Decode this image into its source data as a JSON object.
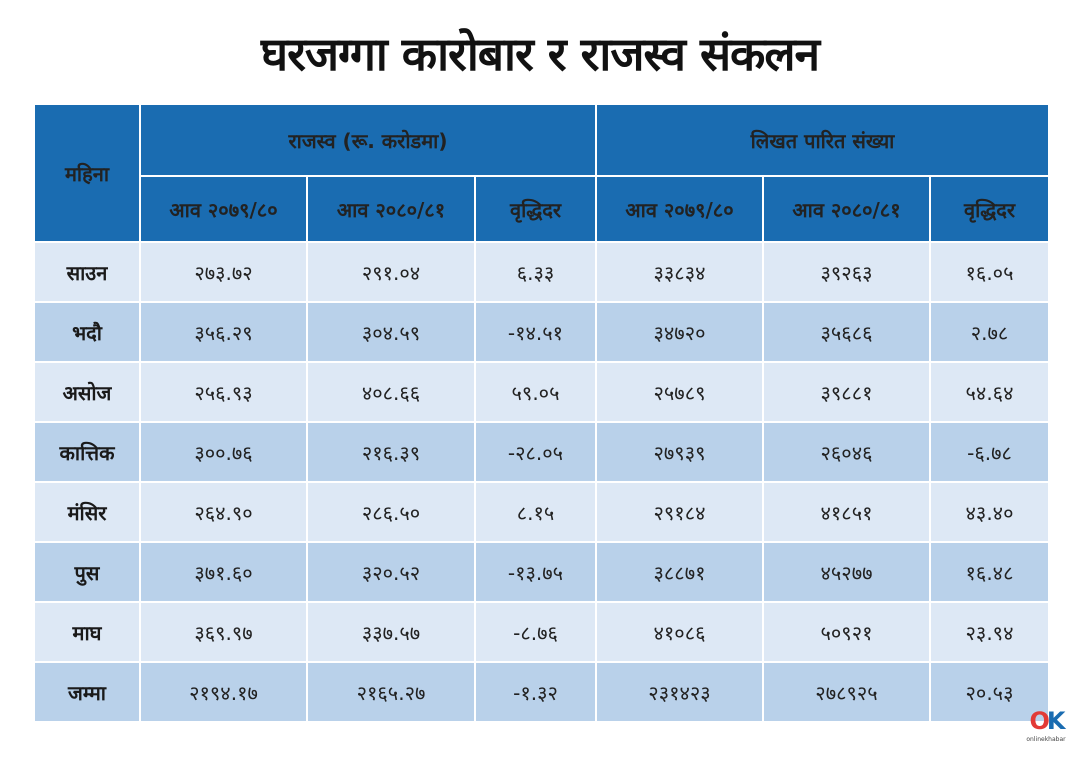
{
  "title": "घरजग्गा कारोबार र राजस्व संकलन",
  "header": {
    "month": "महिना",
    "revenue_group": "राजस्व (रू. करोडमा)",
    "count_group": "लिखत पारित संख्या",
    "col_prev": "आव २०७९/८०",
    "col_curr": "आव २०८०/८१",
    "col_growth": "वृद्धिदर"
  },
  "rows": [
    {
      "month": "साउन",
      "rev_prev": "२७३.७२",
      "rev_curr": "२९१.०४",
      "rev_growth": "६.३३",
      "cnt_prev": "३३८३४",
      "cnt_curr": "३९२६३",
      "cnt_growth": "१६.०५"
    },
    {
      "month": "भदौ",
      "rev_prev": "३५६.२९",
      "rev_curr": "३०४.५९",
      "rev_growth": "-१४.५१",
      "cnt_prev": "३४७२०",
      "cnt_curr": "३५६८६",
      "cnt_growth": "२.७८"
    },
    {
      "month": "असोज",
      "rev_prev": "२५६.९३",
      "rev_curr": "४०८.६६",
      "rev_growth": "५९.०५",
      "cnt_prev": "२५७८९",
      "cnt_curr": "३९८८१",
      "cnt_growth": "५४.६४"
    },
    {
      "month": "कात्तिक",
      "rev_prev": "३००.७६",
      "rev_curr": "२१६.३९",
      "rev_growth": "-२८.०५",
      "cnt_prev": "२७९३९",
      "cnt_curr": "२६०४६",
      "cnt_growth": "-६.७८"
    },
    {
      "month": "मंसिर",
      "rev_prev": "२६४.९०",
      "rev_curr": "२८६.५०",
      "rev_growth": "८.१५",
      "cnt_prev": "२९१८४",
      "cnt_curr": "४१८५१",
      "cnt_growth": "४३.४०"
    },
    {
      "month": "पुस",
      "rev_prev": "३७१.६०",
      "rev_curr": "३२०.५२",
      "rev_growth": "-१३.७५",
      "cnt_prev": "३८८७१",
      "cnt_curr": "४५२७७",
      "cnt_growth": "१६.४८"
    },
    {
      "month": "माघ",
      "rev_prev": "३६९.९७",
      "rev_curr": "३३७.५७",
      "rev_growth": "-८.७६",
      "cnt_prev": "४१०८६",
      "cnt_curr": "५०९२१",
      "cnt_growth": "२३.९४"
    },
    {
      "month": "जम्मा",
      "rev_prev": "२१९४.१७",
      "rev_curr": "२१६५.२७",
      "rev_growth": "-१.३२",
      "cnt_prev": "२३१४२३",
      "cnt_curr": "२७८९२५",
      "cnt_growth": "२०.५३"
    }
  ],
  "logo": {
    "mark_o": "O",
    "mark_k": "K",
    "text": "onlinekhabar"
  },
  "colors": {
    "header": "#1a6cb1",
    "row_light": "#dde8f5",
    "row_dark": "#b9d1ea",
    "logo_red": "#e23a36"
  }
}
